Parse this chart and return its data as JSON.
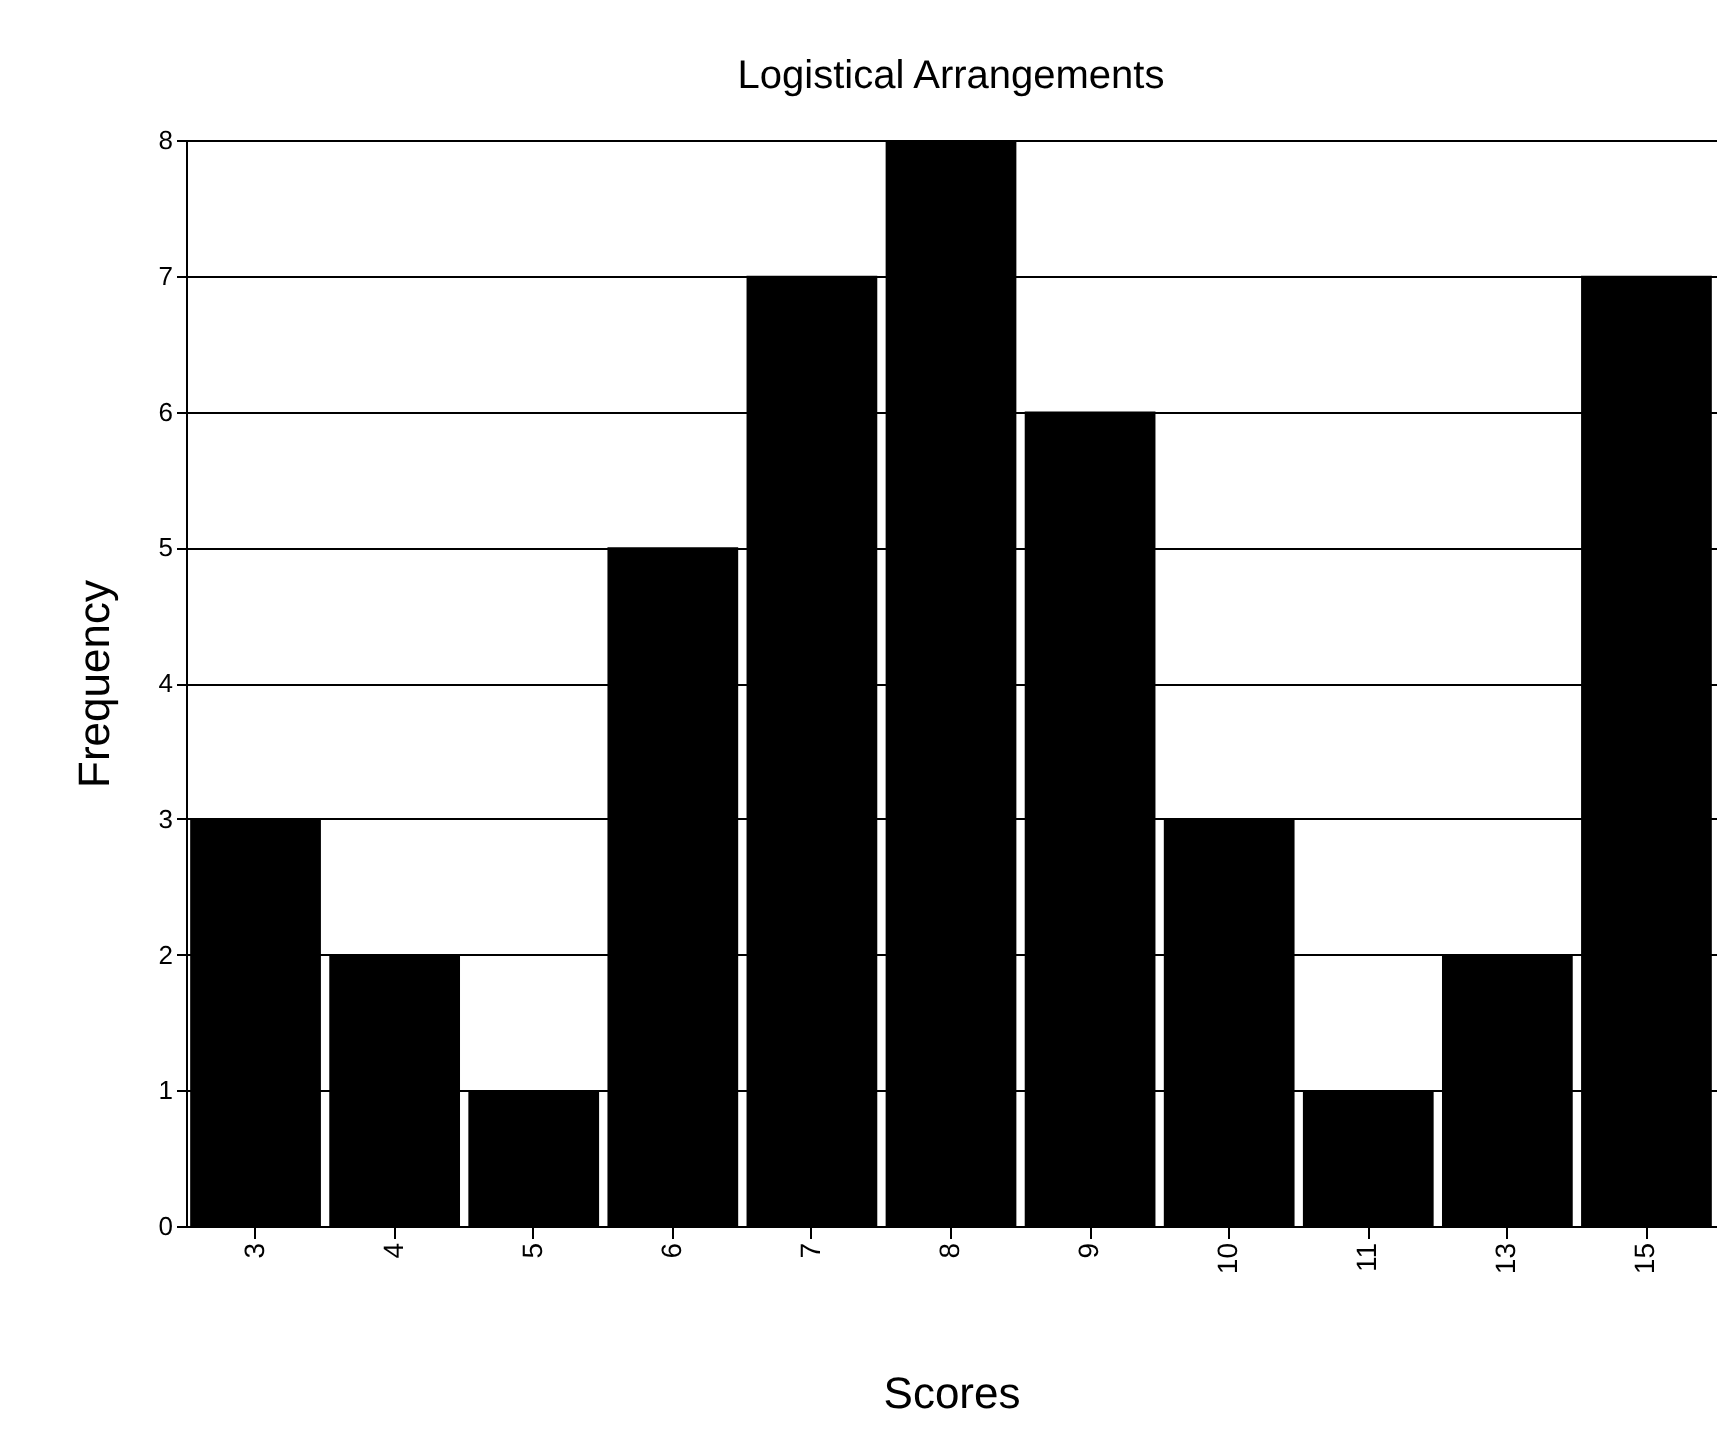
{
  "chart_data": {
    "type": "bar",
    "title": "Logistical Arrangements",
    "xlabel": "Scores",
    "ylabel": "Frequency",
    "categories": [
      "3",
      "4",
      "5",
      "6",
      "7",
      "8",
      "9",
      "10",
      "11",
      "13",
      "15"
    ],
    "values": [
      3,
      2,
      1,
      5,
      7,
      8,
      6,
      3,
      1,
      2,
      7
    ],
    "color": "#000000",
    "ylim": [
      0,
      8
    ],
    "yticks": [
      0,
      1,
      2,
      3,
      4,
      5,
      6,
      7,
      8
    ],
    "grid": "y"
  }
}
